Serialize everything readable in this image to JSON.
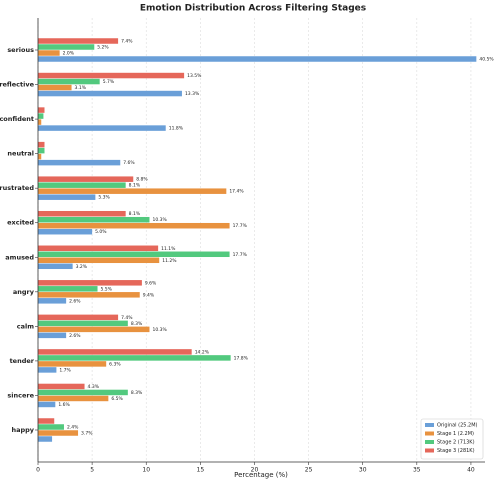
{
  "chart_data": {
    "type": "bar",
    "orientation": "horizontal",
    "title": "Emotion Distribution Across Filtering Stages",
    "xlabel": "Percentage (%)",
    "categories": [
      "serious",
      "reflective",
      "confident",
      "neutral",
      "frustrated",
      "excited",
      "amused",
      "angry",
      "calm",
      "tender",
      "sincere",
      "happy"
    ],
    "series": [
      {
        "name": "Original (25.2M)",
        "color": "#6a9fd8",
        "values": [
          40.5,
          13.3,
          11.8,
          7.6,
          5.3,
          5.0,
          3.2,
          2.6,
          2.6,
          1.7,
          1.6,
          1.3
        ],
        "value_labels": [
          "40.5%",
          "13.3%",
          "11.8%",
          "7.6%",
          "5.3%",
          "5.0%",
          "3.2%",
          "2.6%",
          "2.6%",
          "1.7%",
          "1.6%",
          null
        ]
      },
      {
        "name": "Stage 1 (2.2M)",
        "color": "#e8923f",
        "values": [
          2.0,
          3.1,
          0.3,
          0.3,
          17.4,
          17.7,
          11.2,
          9.4,
          10.3,
          6.3,
          6.5,
          3.7
        ],
        "value_labels": [
          "2.0%",
          "3.1%",
          null,
          null,
          "17.4%",
          "17.7%",
          "11.2%",
          "9.4%",
          "10.3%",
          "6.3%",
          "6.5%",
          "3.7%"
        ]
      },
      {
        "name": "Stage 2 (713K)",
        "color": "#52c97e",
        "values": [
          5.2,
          5.7,
          0.5,
          0.6,
          8.1,
          10.3,
          17.7,
          5.5,
          8.3,
          17.8,
          8.3,
          2.4
        ],
        "value_labels": [
          "5.2%",
          "5.7%",
          null,
          null,
          "8.1%",
          "10.3%",
          "17.7%",
          "5.5%",
          "8.3%",
          "17.8%",
          "8.3%",
          "2.4%"
        ]
      },
      {
        "name": "Stage 3 (281K)",
        "color": "#e5675a",
        "values": [
          7.4,
          13.5,
          0.6,
          0.6,
          8.8,
          8.1,
          11.1,
          9.6,
          7.4,
          14.2,
          4.3,
          1.5
        ],
        "value_labels": [
          "7.4%",
          "13.5%",
          null,
          null,
          "8.8%",
          "8.1%",
          "11.1%",
          "9.6%",
          "7.4%",
          "14.2%",
          "4.3%",
          null
        ]
      }
    ],
    "xlim": [
      0,
      41.3
    ],
    "xticks": [
      0,
      5,
      10,
      15,
      20,
      25,
      30,
      35,
      40
    ],
    "grid": true,
    "legend": "lower right"
  }
}
